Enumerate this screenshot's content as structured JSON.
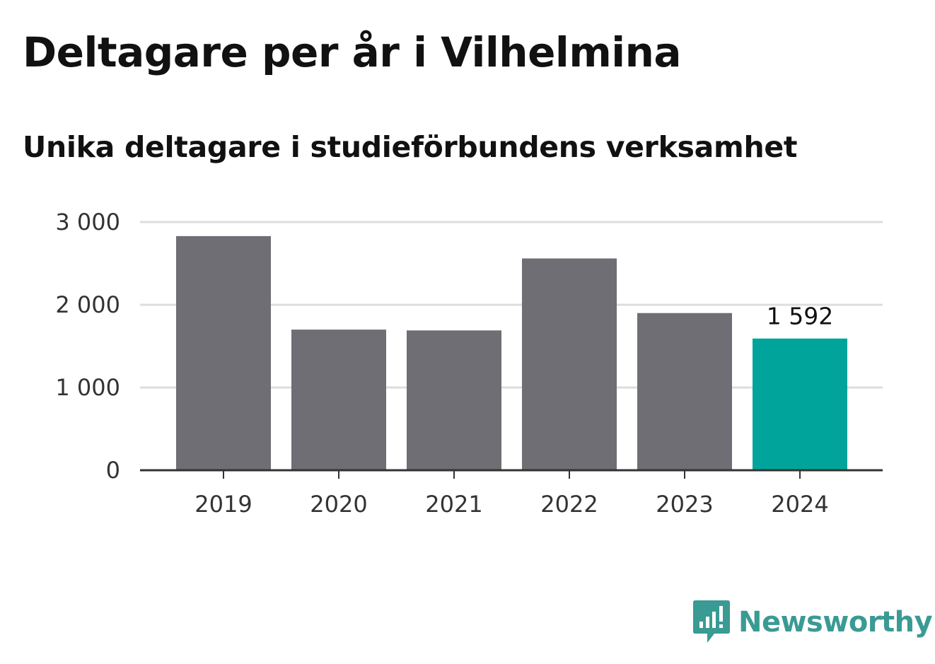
{
  "chart_data": {
    "type": "bar",
    "title": "Deltagare per år i Vilhelmina",
    "subtitle": "Unika deltagare i studieförbundens verksamhet",
    "xlabel": "",
    "ylabel": "",
    "categories": [
      "2019",
      "2020",
      "2021",
      "2022",
      "2023",
      "2024"
    ],
    "values": [
      2830,
      1700,
      1690,
      2560,
      1900,
      1592
    ],
    "ylim": [
      0,
      3000
    ],
    "yticks": [
      0,
      1000,
      2000,
      3000
    ],
    "ytick_labels": [
      "0",
      "1 000",
      "2 000",
      "3 000"
    ],
    "grid": true,
    "legend": "none",
    "highlight_index": 5,
    "data_labels": [
      {
        "index": 5,
        "text": "1 592"
      }
    ],
    "colors": {
      "bar": "#6f6e74",
      "highlight": "#00a49a",
      "grid": "#dddddd",
      "axis": "#333333"
    }
  },
  "branding": {
    "logo_text": "Newsworthy",
    "logo_icon": "newsworthy-chart-bubble-icon",
    "logo_color": "#3a9a94"
  }
}
